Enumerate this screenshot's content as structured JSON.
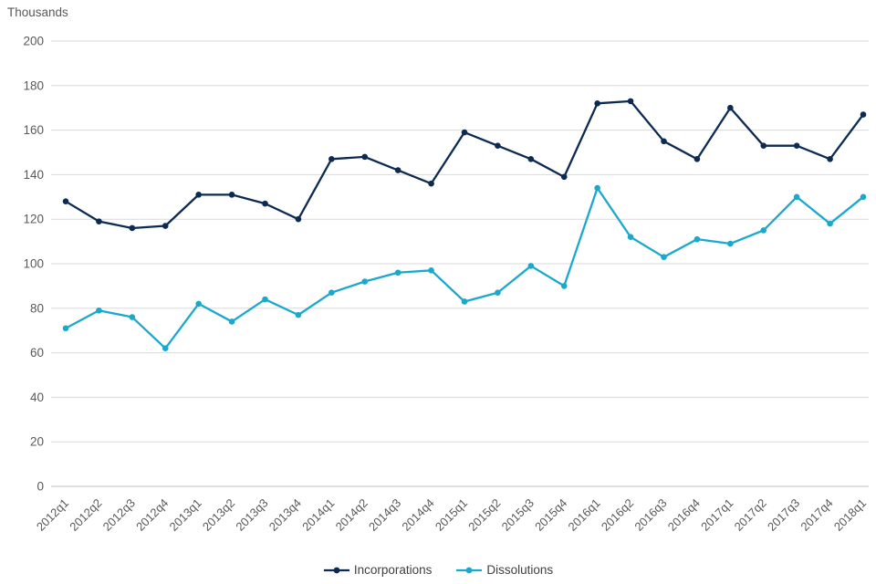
{
  "chart_data": {
    "type": "line",
    "title": "",
    "units_label": "Thousands",
    "xlabel": "",
    "ylabel": "Thousands",
    "ylim": [
      0,
      200
    ],
    "ytick_step": 20,
    "grid": true,
    "legend_position": "bottom",
    "categories": [
      "2012q1",
      "2012q2",
      "2012q3",
      "2012q4",
      "2013q1",
      "2013q2",
      "2013q3",
      "2013q4",
      "2014q1",
      "2014q2",
      "2014q3",
      "2014q4",
      "2015q1",
      "2015q2",
      "2015q3",
      "2015q4",
      "2016q1",
      "2016q2",
      "2016q3",
      "2016q4",
      "2017q1",
      "2017q2",
      "2017q3",
      "2017q4",
      "2018q1"
    ],
    "series": [
      {
        "name": "Incorporations",
        "color": "#0d2b52",
        "values": [
          128,
          119,
          116,
          117,
          131,
          131,
          127,
          120,
          147,
          148,
          142,
          136,
          159,
          153,
          147,
          139,
          172,
          173,
          155,
          147,
          170,
          153,
          153,
          147,
          167
        ]
      },
      {
        "name": "Dissolutions",
        "color": "#1aa9cd",
        "values": [
          71,
          79,
          76,
          62,
          82,
          74,
          84,
          77,
          87,
          92,
          96,
          97,
          83,
          87,
          99,
          90,
          134,
          112,
          103,
          111,
          109,
          115,
          130,
          118,
          130
        ]
      }
    ],
    "colors": {
      "grid": "#d9d9d9",
      "baseline": "#c0c0c0",
      "tick_text": "#595959"
    }
  }
}
